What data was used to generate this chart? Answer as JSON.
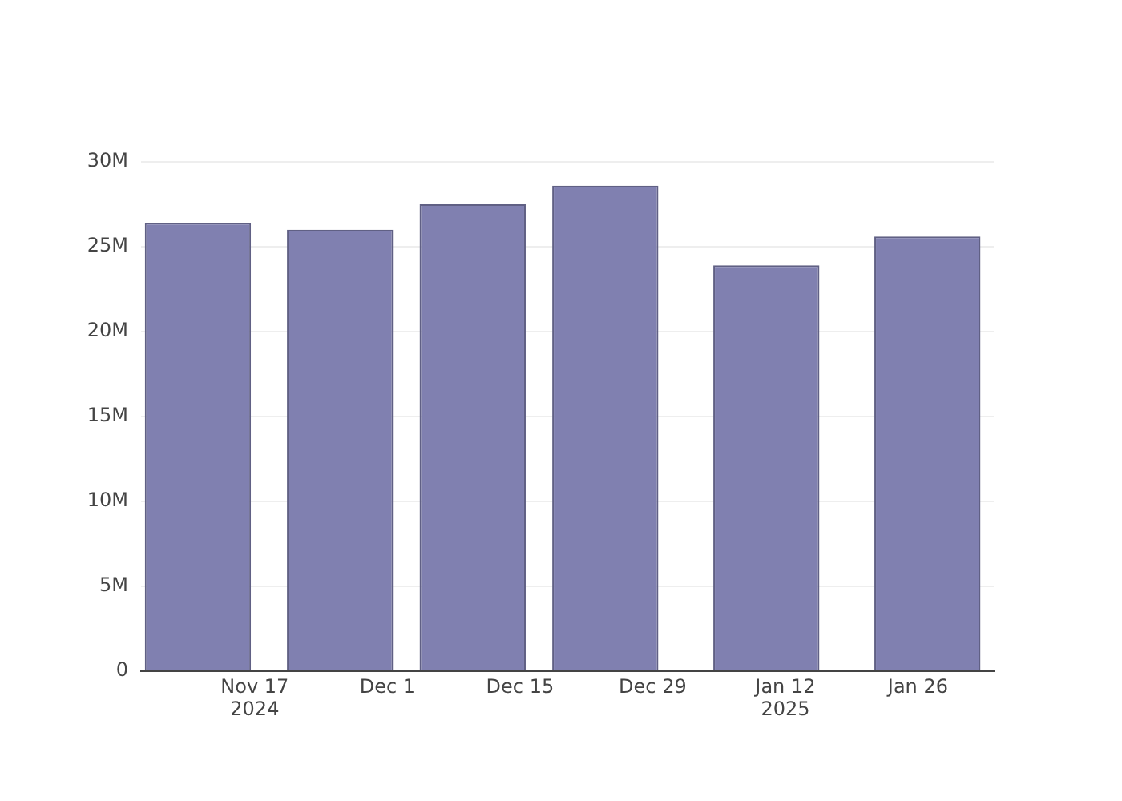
{
  "chart_data": {
    "type": "bar",
    "x": [
      "2024-11-11",
      "2024-11-26",
      "2024-12-10",
      "2024-12-24",
      "2025-01-10",
      "2025-01-27"
    ],
    "values": [
      26400000,
      26000000,
      27500000,
      28600000,
      23900000,
      25600000
    ],
    "color": "#8080b0",
    "xlim": [
      "2024-11-05",
      "2025-02-03"
    ],
    "xticks": [
      {
        "value": "2024-11-17",
        "label": "Nov 17\n2024"
      },
      {
        "value": "2024-12-01",
        "label": "Dec 1"
      },
      {
        "value": "2024-12-15",
        "label": "Dec 15"
      },
      {
        "value": "2024-12-29",
        "label": "Dec 29"
      },
      {
        "value": "2025-01-12",
        "label": "Jan 12\n2025"
      },
      {
        "value": "2025-01-26",
        "label": "Jan 26"
      }
    ],
    "ylim": [
      0,
      30000000
    ],
    "yticks": [
      {
        "value": 0,
        "label": "0"
      },
      {
        "value": 5000000,
        "label": "5M"
      },
      {
        "value": 10000000,
        "label": "10M"
      },
      {
        "value": 15000000,
        "label": "15M"
      },
      {
        "value": 20000000,
        "label": "20M"
      },
      {
        "value": 25000000,
        "label": "25M"
      },
      {
        "value": 30000000,
        "label": "30M"
      }
    ],
    "grid": "y",
    "legend": false
  }
}
